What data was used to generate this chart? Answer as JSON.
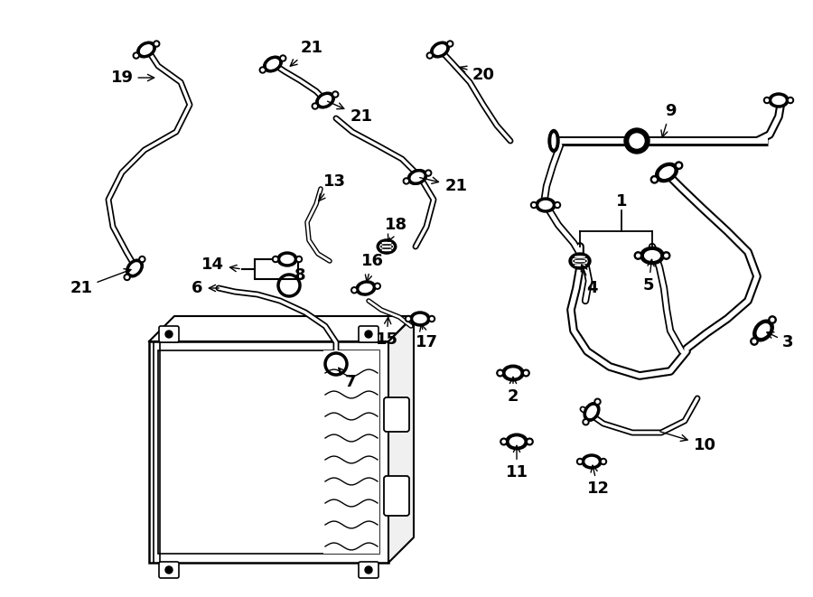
{
  "bg_color": "#ffffff",
  "line_color": "#000000",
  "fig_width": 9.0,
  "fig_height": 6.61,
  "dpi": 100,
  "lw_hose": 2.0,
  "lw_hose_inner": 0,
  "font_size": 13
}
